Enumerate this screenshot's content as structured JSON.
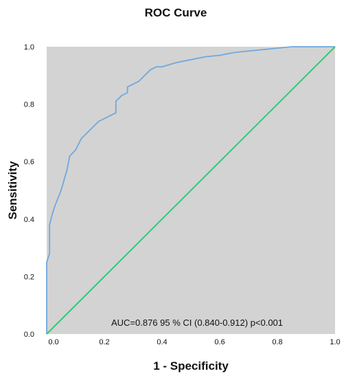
{
  "chart_data": {
    "type": "line",
    "title": "ROC Curve",
    "xlabel": "1 - Specificity",
    "ylabel": "Sensitivity",
    "xlim": [
      0,
      1
    ],
    "ylim": [
      0,
      1
    ],
    "x_ticks": [
      {
        "value": 0.0,
        "label": "0.0"
      },
      {
        "value": 0.2,
        "label": "0.2"
      },
      {
        "value": 0.4,
        "label": "0.4"
      },
      {
        "value": 0.6,
        "label": "0.6"
      },
      {
        "value": 0.8,
        "label": "0.8"
      },
      {
        "value": 1.0,
        "label": "1.0"
      }
    ],
    "y_ticks": [
      {
        "value": 0.0,
        "label": "0.0"
      },
      {
        "value": 0.2,
        "label": "0.2"
      },
      {
        "value": 0.4,
        "label": "0.4"
      },
      {
        "value": 0.6,
        "label": "0.6"
      },
      {
        "value": 0.8,
        "label": "0.8"
      },
      {
        "value": 1.0,
        "label": "1.0"
      }
    ],
    "grid": false,
    "background_color": "#d3d3d3",
    "annotation": "AUC=0.876   95 % CI (0.840-0.912) p<0.001",
    "series": [
      {
        "color": "#6fa8dc",
        "x": [
          0.0,
          0.0,
          0.01,
          0.01,
          0.02,
          0.03,
          0.05,
          0.07,
          0.08,
          0.1,
          0.12,
          0.14,
          0.16,
          0.18,
          0.2,
          0.22,
          0.24,
          0.24,
          0.26,
          0.28,
          0.28,
          0.32,
          0.36,
          0.38,
          0.4,
          0.45,
          0.5,
          0.55,
          0.6,
          0.65,
          0.7,
          0.75,
          0.8,
          0.85,
          0.9,
          1.0
        ],
        "y": [
          0.0,
          0.25,
          0.28,
          0.38,
          0.42,
          0.45,
          0.5,
          0.57,
          0.62,
          0.64,
          0.68,
          0.7,
          0.72,
          0.74,
          0.75,
          0.76,
          0.77,
          0.81,
          0.83,
          0.84,
          0.86,
          0.88,
          0.92,
          0.93,
          0.93,
          0.945,
          0.955,
          0.965,
          0.97,
          0.98,
          0.985,
          0.99,
          0.995,
          1.0,
          1.0,
          1.0
        ]
      },
      {
        "color": "#2ecc71",
        "x": [
          0,
          1
        ],
        "y": [
          0,
          1
        ]
      }
    ]
  }
}
